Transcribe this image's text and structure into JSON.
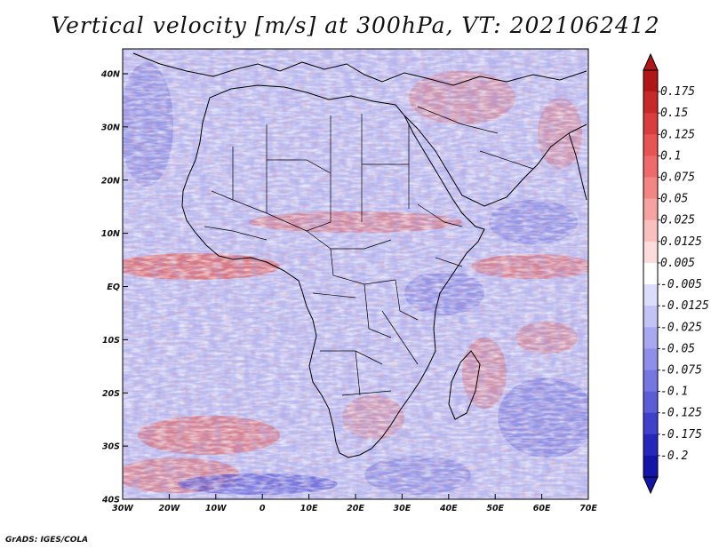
{
  "title": "Vertical velocity [m/s] at 300hPa, VT: 2021062412",
  "credit": "GrADS: IGES/COLA",
  "axes": {
    "x_ticks": [
      "30W",
      "20W",
      "10W",
      "0",
      "10E",
      "20E",
      "30E",
      "40E",
      "50E",
      "60E",
      "70E"
    ],
    "y_ticks": [
      "40N",
      "30N",
      "20N",
      "10N",
      "EQ",
      "10S",
      "20S",
      "30S",
      "40S"
    ]
  },
  "colorbar": {
    "labels": [
      "0.175",
      "0.15",
      "0.125",
      "0.1",
      "0.075",
      "0.05",
      "0.025",
      "0.0125",
      "0.005",
      "-0.005",
      "-0.0125",
      "-0.025",
      "-0.05",
      "-0.075",
      "-0.1",
      "-0.125",
      "-0.175",
      "-0.2"
    ],
    "colors": [
      "#b01616",
      "#c72828",
      "#d93d3d",
      "#e85353",
      "#ef6a6a",
      "#f38585",
      "#f6a2a2",
      "#f9c0c0",
      "#fcdcdc",
      "#ffffff",
      "#dcdcfb",
      "#c3c3f6",
      "#a8a8f0",
      "#8f8fea",
      "#7676e2",
      "#5c5cd8",
      "#4040cc",
      "#2626bc",
      "#1414a8"
    ]
  },
  "colors": {
    "land_base": "#b9b9ee",
    "up_motion": "#e05050",
    "down_motion": "#5555d5",
    "border": "#000000"
  }
}
